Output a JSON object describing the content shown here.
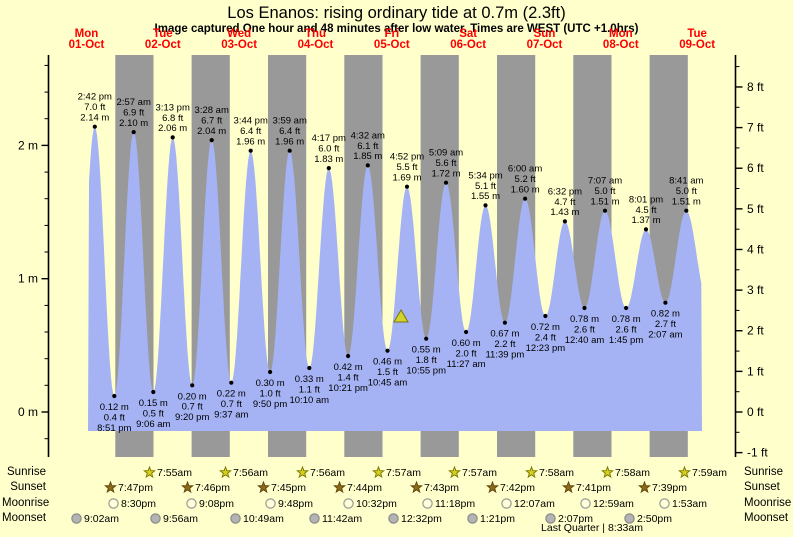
{
  "page": {
    "title": "Los Enanos: rising  ordinary tide at 0.7m (2.3ft)",
    "subtitle": "Image captured One hour and 48 minutes after low water. Times are WEST (UTC +1.0hrs)"
  },
  "days": [
    {
      "name": "Mon",
      "date": "01-Oct"
    },
    {
      "name": "Tue",
      "date": "02-Oct"
    },
    {
      "name": "Wed",
      "date": "03-Oct"
    },
    {
      "name": "Thu",
      "date": "04-Oct"
    },
    {
      "name": "Fri",
      "date": "05-Oct"
    },
    {
      "name": "Sat",
      "date": "06-Oct"
    },
    {
      "name": "Sun",
      "date": "07-Oct"
    },
    {
      "name": "Mon",
      "date": "08-Oct"
    },
    {
      "name": "Tue",
      "date": "09-Oct"
    }
  ],
  "chart_data": {
    "type": "area",
    "title": "Los Enanos: rising  ordinary tide at 0.7m (2.3ft)",
    "subtitle": "Image captured One hour and 48 minutes after low water. Times are WEST (UTC +1.0hrs)",
    "x_categories": [
      "Mon 01-Oct",
      "Tue 02-Oct",
      "Wed 03-Oct",
      "Thu 04-Oct",
      "Fri 05-Oct",
      "Sat 06-Oct",
      "Sun 07-Oct",
      "Mon 08-Oct",
      "Tue 09-Oct"
    ],
    "y_axis_left": {
      "unit": "m",
      "tick_labels": [
        "0 m",
        "1 m",
        "2 m"
      ]
    },
    "y_axis_right": {
      "unit": "ft",
      "tick_labels": [
        "-1 ft",
        "0 ft",
        "1 ft",
        "2 ft",
        "3 ft",
        "4 ft",
        "5 ft",
        "6 ft",
        "7 ft",
        "8 ft"
      ]
    },
    "ylim_m": [
      -0.35,
      2.68
    ],
    "grid": false,
    "current_tide": {
      "level_m": "0.7m",
      "level_ft": "2.3ft",
      "marker": "yellow-triangle"
    },
    "tide_events": [
      {
        "day": 1,
        "kind": "high",
        "time": "2:42 pm",
        "ft": "7.0 ft",
        "m": "2.14 m"
      },
      {
        "day": 1,
        "kind": "low",
        "time": "8:51 pm",
        "ft": "0.4 ft",
        "m": "0.12 m"
      },
      {
        "day": 2,
        "kind": "high",
        "time": "2:57 am",
        "ft": "6.9 ft",
        "m": "2.10 m"
      },
      {
        "day": 2,
        "kind": "low",
        "time": "9:06 am",
        "ft": "0.5 ft",
        "m": "0.15 m"
      },
      {
        "day": 2,
        "kind": "high",
        "time": "3:13 pm",
        "ft": "6.8 ft",
        "m": "2.06 m"
      },
      {
        "day": 2,
        "kind": "low",
        "time": "9:20 pm",
        "ft": "0.7 ft",
        "m": "0.20 m"
      },
      {
        "day": 3,
        "kind": "high",
        "time": "3:28 am",
        "ft": "6.7 ft",
        "m": "2.04 m"
      },
      {
        "day": 3,
        "kind": "low",
        "time": "9:37 am",
        "ft": "0.7 ft",
        "m": "0.22 m"
      },
      {
        "day": 3,
        "kind": "high",
        "time": "3:44 pm",
        "ft": "6.4 ft",
        "m": "1.96 m"
      },
      {
        "day": 3,
        "kind": "low",
        "time": "9:50 pm",
        "ft": "1.0 ft",
        "m": "0.30 m"
      },
      {
        "day": 4,
        "kind": "high",
        "time": "3:59 am",
        "ft": "6.4 ft",
        "m": "1.96 m"
      },
      {
        "day": 4,
        "kind": "low",
        "time": "10:10 am",
        "ft": "1.1 ft",
        "m": "0.33 m"
      },
      {
        "day": 4,
        "kind": "high",
        "time": "4:17 pm",
        "ft": "6.0 ft",
        "m": "1.83 m"
      },
      {
        "day": 4,
        "kind": "low",
        "time": "10:21 pm",
        "ft": "1.4 ft",
        "m": "0.42 m"
      },
      {
        "day": 5,
        "kind": "high",
        "time": "4:32 am",
        "ft": "6.1 ft",
        "m": "1.85 m"
      },
      {
        "day": 5,
        "kind": "low",
        "time": "10:45 am",
        "ft": "1.5 ft",
        "m": "0.46 m"
      },
      {
        "day": 5,
        "kind": "high",
        "time": "4:52 pm",
        "ft": "5.5 ft",
        "m": "1.69 m"
      },
      {
        "day": 5,
        "kind": "low",
        "time": "10:55 pm",
        "ft": "1.8 ft",
        "m": "0.55 m"
      },
      {
        "day": 6,
        "kind": "high",
        "time": "5:09 am",
        "ft": "5.6 ft",
        "m": "1.72 m"
      },
      {
        "day": 6,
        "kind": "low",
        "time": "11:27 am",
        "ft": "2.0 ft",
        "m": "0.60 m"
      },
      {
        "day": 6,
        "kind": "high",
        "time": "5:34 pm",
        "ft": "5.1 ft",
        "m": "1.55 m"
      },
      {
        "day": 6,
        "kind": "low",
        "time": "11:39 pm",
        "ft": "2.2 ft",
        "m": "0.67 m"
      },
      {
        "day": 7,
        "kind": "high",
        "time": "6:00 am",
        "ft": "5.2 ft",
        "m": "1.60 m"
      },
      {
        "day": 7,
        "kind": "low",
        "time": "12:23 pm",
        "ft": "2.4 ft",
        "m": "0.72 m"
      },
      {
        "day": 7,
        "kind": "high",
        "time": "6:32 pm",
        "ft": "4.7 ft",
        "m": "1.43 m"
      },
      {
        "day": 8,
        "kind": "low",
        "time": "12:40 am",
        "ft": "2.6 ft",
        "m": "0.78 m"
      },
      {
        "day": 8,
        "kind": "high",
        "time": "7:07 am",
        "ft": "5.0 ft",
        "m": "1.51 m"
      },
      {
        "day": 8,
        "kind": "low",
        "time": "1:45 pm",
        "ft": "2.6 ft",
        "m": "0.78 m"
      },
      {
        "day": 8,
        "kind": "high",
        "time": "8:01 pm",
        "ft": "4.5 ft",
        "m": "1.37 m"
      },
      {
        "day": 9,
        "kind": "low",
        "time": "2:07 am",
        "ft": "2.7 ft",
        "m": "0.82 m"
      },
      {
        "day": 9,
        "kind": "high",
        "time": "8:41 am",
        "ft": "5.0 ft",
        "m": "1.51 m"
      }
    ],
    "colors": {
      "background": "#ffffcc",
      "night_band": "#999999",
      "tide_fill": "#a5b3f4",
      "day_label": "#ff0000",
      "marker_fill": "#d4d22b",
      "marker_stroke": "#76760a"
    }
  },
  "almanac": {
    "rows": [
      {
        "label": "Sunrise",
        "icon": "sunrise-star-icon",
        "events": [
          {
            "day": 2,
            "time": "7:55am"
          },
          {
            "day": 3,
            "time": "7:56am"
          },
          {
            "day": 4,
            "time": "7:56am"
          },
          {
            "day": 5,
            "time": "7:57am"
          },
          {
            "day": 6,
            "time": "7:57am"
          },
          {
            "day": 7,
            "time": "7:58am"
          },
          {
            "day": 8,
            "time": "7:58am"
          },
          {
            "day": 9,
            "time": "7:59am"
          }
        ]
      },
      {
        "label": "Sunset",
        "icon": "sunset-star-icon",
        "events": [
          {
            "day": 1,
            "time": "7:47pm"
          },
          {
            "day": 2,
            "time": "7:46pm"
          },
          {
            "day": 3,
            "time": "7:45pm"
          },
          {
            "day": 4,
            "time": "7:44pm"
          },
          {
            "day": 5,
            "time": "7:43pm"
          },
          {
            "day": 6,
            "time": "7:42pm"
          },
          {
            "day": 7,
            "time": "7:41pm"
          },
          {
            "day": 8,
            "time": "7:39pm"
          }
        ]
      },
      {
        "label": "Moonrise",
        "icon": "moonrise-circle-icon",
        "events": [
          {
            "day": 1,
            "time": "8:30pm"
          },
          {
            "day": 2,
            "time": "9:08pm"
          },
          {
            "day": 3,
            "time": "9:48pm"
          },
          {
            "day": 4,
            "time": "10:32pm"
          },
          {
            "day": 5,
            "time": "11:18pm"
          },
          {
            "day": 7,
            "time": "12:07am"
          },
          {
            "day": 8,
            "time": "12:59am"
          },
          {
            "day": 9,
            "time": "1:53am"
          }
        ]
      },
      {
        "label": "Moonset",
        "icon": "moonset-circle-icon",
        "events": [
          {
            "day": 1,
            "time": "9:02am"
          },
          {
            "day": 2,
            "time": "9:56am"
          },
          {
            "day": 3,
            "time": "10:49am"
          },
          {
            "day": 4,
            "time": "11:42am"
          },
          {
            "day": 5,
            "time": "12:32pm"
          },
          {
            "day": 6,
            "time": "1:21pm"
          },
          {
            "day": 7,
            "time": "2:07pm"
          },
          {
            "day": 8,
            "time": "2:50pm"
          }
        ]
      }
    ],
    "footnote": "Last Quarter | 8:33am"
  }
}
